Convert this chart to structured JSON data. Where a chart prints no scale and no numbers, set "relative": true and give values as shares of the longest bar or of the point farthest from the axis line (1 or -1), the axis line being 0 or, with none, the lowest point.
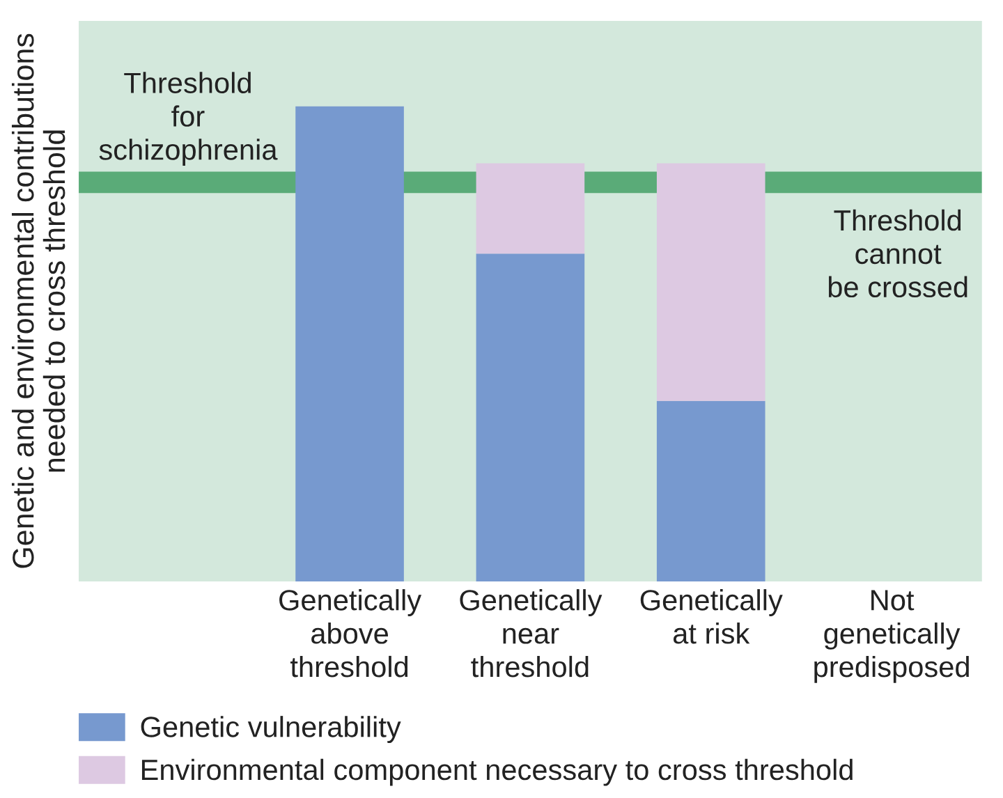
{
  "chart_data": {
    "type": "bar",
    "stacked": true,
    "relative": true,
    "ylabel": "Genetic and environmental contributions\nneeded to cross threshold",
    "categories": [
      null,
      "Genetically\nabove\nthreshold",
      "Genetically\nnear\nthreshold",
      "Genetically\nat risk",
      "Not\ngenetically\npredisposed"
    ],
    "series": [
      {
        "name": "Genetic vulnerability",
        "color": "#7799cf",
        "values": [
          null,
          1.0,
          0.69,
          0.38,
          null
        ]
      },
      {
        "name": "Environmental component necessary to cross threshold",
        "color": "#ddc9e2",
        "values": [
          null,
          null,
          0.19,
          0.5,
          null
        ]
      }
    ],
    "ref_lines": [
      {
        "axis": "y",
        "value": 0.84,
        "label": "Threshold\nfor\nschizophrenia",
        "color": "#5aab78"
      }
    ],
    "annotations": [
      "Threshold\ncannot\nbe crossed"
    ],
    "legend": "bottom"
  }
}
